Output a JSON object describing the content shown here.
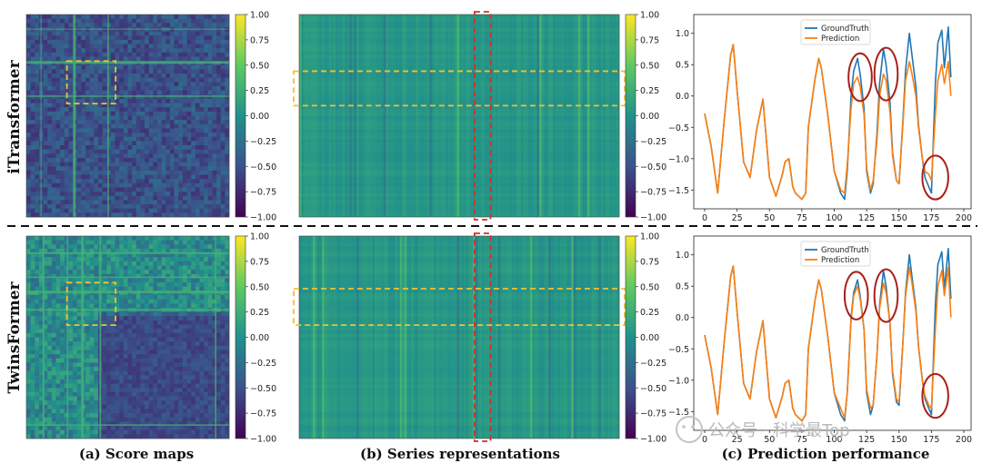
{
  "rows": [
    {
      "label": "iTransformer"
    },
    {
      "label": "TwinsFormer"
    }
  ],
  "captions": {
    "a": "(a) Score maps",
    "b": "(b) Series representations",
    "c": "(c) Prediction performance"
  },
  "colorbar": {
    "ticks": [
      "1.00",
      "0.75",
      "0.50",
      "0.25",
      "0.00",
      "−0.25",
      "−0.50",
      "−0.75",
      "−1.00"
    ],
    "colormap": [
      "#440154",
      "#3b528b",
      "#21918c",
      "#5ec962",
      "#fde725"
    ]
  },
  "colors": {
    "ground_truth": "#1f77b4",
    "prediction": "#ff7f0e",
    "highlight_dash": "#f2c12e",
    "column_highlight": "#d0302a",
    "circle": "#a8201a"
  },
  "watermark": "公众号 · 科学最Top",
  "chart_data": [
    {
      "type": "heatmap",
      "panel": "(a) Score maps",
      "row": "iTransformer",
      "value_range": [
        -1.0,
        1.0
      ],
      "dominant_value": -0.5,
      "highlight": "dashed yellow box"
    },
    {
      "type": "heatmap",
      "panel": "(b) Series representations",
      "row": "iTransformer",
      "value_range": [
        -1.0,
        1.0
      ],
      "dominant_value": 0.05,
      "highlight": "dashed yellow horizontal band, dashed red vertical column"
    },
    {
      "type": "line",
      "panel": "(c) Prediction performance",
      "row": "iTransformer",
      "xlim": [
        0,
        200
      ],
      "ylim": [
        -1.8,
        1.3
      ],
      "xticks": [
        "0",
        "25",
        "50",
        "75",
        "100",
        "125",
        "150",
        "175",
        "200"
      ],
      "yticks": [
        "1.0",
        "0.5",
        "0.0",
        "−0.5",
        "−1.0",
        "−1.5"
      ],
      "legend": "top-center",
      "series": [
        {
          "name": "GroundTruth",
          "x": [
            0,
            5,
            10,
            15,
            20,
            22,
            25,
            30,
            35,
            40,
            45,
            50,
            55,
            60,
            62,
            65,
            68,
            70,
            75,
            78,
            80,
            85,
            88,
            90,
            95,
            100,
            105,
            108,
            110,
            113,
            115,
            118,
            120,
            123,
            125,
            128,
            130,
            133,
            135,
            138,
            140,
            143,
            145,
            148,
            150,
            153,
            155,
            158,
            160,
            163,
            165,
            168,
            170,
            173,
            175,
            178,
            180,
            183,
            185,
            188,
            190
          ],
          "y": [
            -0.28,
            -0.8,
            -1.55,
            -0.4,
            0.65,
            0.82,
            0.1,
            -1.05,
            -1.3,
            -0.55,
            -0.05,
            -1.3,
            -1.6,
            -1.25,
            -1.05,
            -1.0,
            -1.45,
            -1.55,
            -1.65,
            -1.55,
            -0.5,
            0.25,
            0.6,
            0.45,
            -0.3,
            -1.2,
            -1.55,
            -1.65,
            -1.2,
            0.0,
            0.4,
            0.6,
            0.35,
            -0.2,
            -1.2,
            -1.55,
            -1.4,
            -0.6,
            0.2,
            0.75,
            0.5,
            -0.1,
            -0.9,
            -1.35,
            -1.4,
            -0.4,
            0.4,
            1.0,
            0.65,
            0.15,
            -0.45,
            -1.0,
            -1.3,
            -1.45,
            -1.55,
            0.2,
            0.85,
            1.05,
            0.45,
            1.1,
            0.3
          ]
        },
        {
          "name": "Prediction",
          "x": [
            0,
            5,
            10,
            15,
            20,
            22,
            25,
            30,
            35,
            40,
            45,
            50,
            55,
            60,
            62,
            65,
            68,
            70,
            75,
            78,
            80,
            85,
            88,
            90,
            95,
            100,
            105,
            108,
            110,
            113,
            115,
            118,
            120,
            123,
            125,
            128,
            130,
            133,
            135,
            138,
            140,
            143,
            145,
            148,
            150,
            153,
            155,
            158,
            160,
            163,
            165,
            168,
            170,
            173,
            175,
            178,
            180,
            183,
            185,
            188,
            190
          ],
          "y": [
            -0.28,
            -0.8,
            -1.55,
            -0.4,
            0.65,
            0.82,
            0.1,
            -1.05,
            -1.3,
            -0.55,
            -0.05,
            -1.3,
            -1.6,
            -1.25,
            -1.05,
            -1.0,
            -1.45,
            -1.55,
            -1.65,
            -1.55,
            -0.5,
            0.25,
            0.6,
            0.45,
            -0.3,
            -1.2,
            -1.5,
            -1.55,
            -1.1,
            -0.2,
            0.2,
            0.3,
            0.15,
            -0.3,
            -1.15,
            -1.5,
            -1.35,
            -0.7,
            0.0,
            0.35,
            0.25,
            -0.25,
            -0.95,
            -1.35,
            -1.4,
            -0.45,
            0.25,
            0.55,
            0.35,
            0.0,
            -0.5,
            -1.0,
            -1.2,
            -1.25,
            -1.35,
            -0.3,
            0.25,
            0.5,
            0.2,
            0.55,
            0.0
          ]
        }
      ]
    },
    {
      "type": "heatmap",
      "panel": "(a) Score maps",
      "row": "TwinsFormer",
      "value_range": [
        -1.0,
        1.0
      ],
      "dominant_value": -0.35,
      "highlight": "dashed yellow box"
    },
    {
      "type": "heatmap",
      "panel": "(b) Series representations",
      "row": "TwinsFormer",
      "value_range": [
        -1.0,
        1.0
      ],
      "dominant_value": 0.05,
      "highlight": "dashed yellow horizontal band, dashed red vertical column"
    },
    {
      "type": "line",
      "panel": "(c) Prediction performance",
      "row": "TwinsFormer",
      "xlim": [
        0,
        200
      ],
      "ylim": [
        -1.8,
        1.3
      ],
      "xticks": [
        "0",
        "25",
        "50",
        "75",
        "100",
        "125",
        "150",
        "175",
        "200"
      ],
      "yticks": [
        "1.0",
        "0.5",
        "0.0",
        "−0.5",
        "−1.0",
        "−1.5"
      ],
      "legend": "top-center",
      "series": [
        {
          "name": "GroundTruth",
          "x": [
            0,
            5,
            10,
            15,
            20,
            22,
            25,
            30,
            35,
            40,
            45,
            50,
            55,
            60,
            62,
            65,
            68,
            70,
            75,
            78,
            80,
            85,
            88,
            90,
            95,
            100,
            105,
            108,
            110,
            113,
            115,
            118,
            120,
            123,
            125,
            128,
            130,
            133,
            135,
            138,
            140,
            143,
            145,
            148,
            150,
            153,
            155,
            158,
            160,
            163,
            165,
            168,
            170,
            173,
            175,
            178,
            180,
            183,
            185,
            188,
            190
          ],
          "y": [
            -0.28,
            -0.8,
            -1.55,
            -0.4,
            0.65,
            0.82,
            0.1,
            -1.05,
            -1.3,
            -0.55,
            -0.05,
            -1.3,
            -1.6,
            -1.25,
            -1.05,
            -1.0,
            -1.45,
            -1.55,
            -1.65,
            -1.55,
            -0.5,
            0.25,
            0.6,
            0.45,
            -0.3,
            -1.2,
            -1.55,
            -1.65,
            -1.2,
            0.0,
            0.4,
            0.6,
            0.35,
            -0.2,
            -1.2,
            -1.55,
            -1.4,
            -0.6,
            0.2,
            0.75,
            0.5,
            -0.1,
            -0.9,
            -1.35,
            -1.4,
            -0.4,
            0.4,
            1.0,
            0.65,
            0.15,
            -0.45,
            -1.0,
            -1.3,
            -1.45,
            -1.55,
            0.2,
            0.85,
            1.05,
            0.45,
            1.1,
            0.3
          ]
        },
        {
          "name": "Prediction",
          "x": [
            0,
            5,
            10,
            15,
            20,
            22,
            25,
            30,
            35,
            40,
            45,
            50,
            55,
            60,
            62,
            65,
            68,
            70,
            75,
            78,
            80,
            85,
            88,
            90,
            95,
            100,
            105,
            108,
            110,
            113,
            115,
            118,
            120,
            123,
            125,
            128,
            130,
            133,
            135,
            138,
            140,
            143,
            145,
            148,
            150,
            153,
            155,
            158,
            160,
            163,
            165,
            168,
            170,
            173,
            175,
            178,
            180,
            183,
            185,
            188,
            190
          ],
          "y": [
            -0.28,
            -0.8,
            -1.55,
            -0.4,
            0.65,
            0.82,
            0.1,
            -1.05,
            -1.3,
            -0.55,
            -0.05,
            -1.3,
            -1.6,
            -1.25,
            -1.05,
            -1.0,
            -1.45,
            -1.55,
            -1.65,
            -1.55,
            -0.5,
            0.25,
            0.6,
            0.45,
            -0.3,
            -1.2,
            -1.45,
            -1.6,
            -1.2,
            -0.05,
            0.35,
            0.5,
            0.3,
            -0.2,
            -1.15,
            -1.45,
            -1.4,
            -0.6,
            0.15,
            0.55,
            0.4,
            -0.1,
            -0.85,
            -1.3,
            -1.35,
            -0.4,
            0.35,
            0.8,
            0.55,
            0.1,
            -0.45,
            -1.0,
            -1.25,
            -1.4,
            -1.45,
            -0.2,
            0.5,
            0.75,
            0.35,
            0.8,
            0.0
          ]
        }
      ]
    }
  ]
}
